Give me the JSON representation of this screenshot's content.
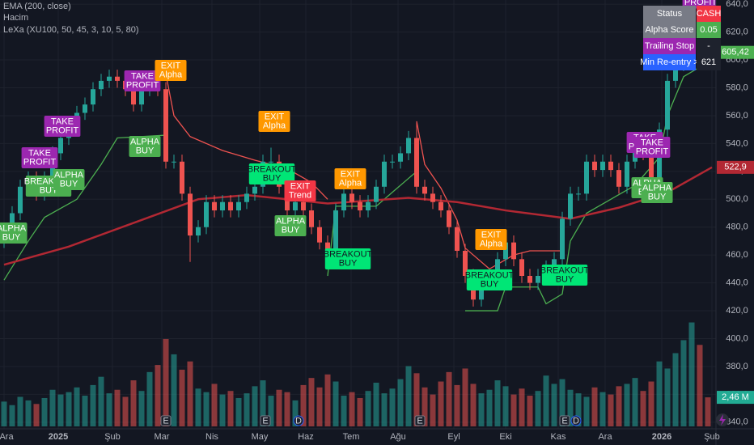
{
  "chart_data": {
    "type": "candlestick",
    "indicators": [
      "EMA (200, close)",
      "Hacim",
      "LeXa (XU100, 50, 45, 3, 10, 5, 80)"
    ],
    "xlim": [
      -0.5,
      87.5
    ],
    "xticks": [
      {
        "value": 0,
        "label": "Ara"
      },
      {
        "value": 6.7,
        "label": "2025"
      },
      {
        "value": 13.4,
        "label": "Şub"
      },
      {
        "value": 19.5,
        "label": "Mar"
      },
      {
        "value": 25.7,
        "label": "Nis"
      },
      {
        "value": 31.6,
        "label": "May"
      },
      {
        "value": 37.3,
        "label": "Haz"
      },
      {
        "value": 42.9,
        "label": "Tem"
      },
      {
        "value": 48.7,
        "label": "Ağu"
      },
      {
        "value": 55.6,
        "label": "Eyl"
      },
      {
        "value": 62,
        "label": "Eki"
      },
      {
        "value": 68.5,
        "label": "Kas"
      },
      {
        "value": 74.3,
        "label": "Ara"
      },
      {
        "value": 81.3,
        "label": "2026"
      },
      {
        "value": 87.5,
        "label": "Şub"
      }
    ],
    "ylim": [
      337,
      643
    ],
    "yticks": [
      {
        "value": 640,
        "label": "640,0"
      },
      {
        "value": 620,
        "label": "620,0"
      },
      {
        "value": 600,
        "label": "600,0"
      },
      {
        "value": 580,
        "label": "580,0"
      },
      {
        "value": 560,
        "label": "560,0"
      },
      {
        "value": 540,
        "label": "540,0"
      },
      {
        "value": 520,
        "label": "520,0"
      },
      {
        "value": 500,
        "label": "500,0"
      },
      {
        "value": 480,
        "label": "480,0"
      },
      {
        "value": 460,
        "label": "460,0"
      },
      {
        "value": 440,
        "label": "440,0"
      },
      {
        "value": 420,
        "label": "420,0"
      },
      {
        "value": 400,
        "label": "400,0"
      },
      {
        "value": 380,
        "label": "380,0"
      },
      {
        "value": 360,
        "label": "360,0"
      },
      {
        "value": 340,
        "label": "340,0"
      }
    ],
    "up_color": "#26a69a",
    "down_color": "#ef5350",
    "candles": [
      [
        470,
        480,
        465,
        475
      ],
      [
        475,
        495,
        470,
        490
      ],
      [
        490,
        514,
        485,
        509
      ],
      [
        509,
        520,
        504,
        515
      ],
      [
        515,
        520,
        499,
        504
      ],
      [
        504,
        520,
        499,
        515
      ],
      [
        515,
        538,
        510,
        533
      ],
      [
        533,
        549,
        528,
        544
      ],
      [
        544,
        555,
        539,
        550
      ],
      [
        550,
        567,
        545,
        562
      ],
      [
        562,
        573,
        557,
        568
      ],
      [
        568,
        584,
        563,
        579
      ],
      [
        579,
        590,
        574,
        585
      ],
      [
        585,
        593,
        580,
        588
      ],
      [
        588,
        593,
        580,
        585
      ],
      [
        585,
        590,
        574,
        579
      ],
      [
        579,
        584,
        563,
        568
      ],
      [
        568,
        584,
        563,
        579
      ],
      [
        579,
        590,
        574,
        585
      ],
      [
        585,
        590,
        574,
        579
      ],
      [
        579,
        584,
        522,
        527
      ],
      [
        527,
        532,
        522,
        527
      ],
      [
        527,
        532,
        499,
        504
      ],
      [
        504,
        509,
        455,
        474
      ],
      [
        474,
        485,
        469,
        480
      ],
      [
        480,
        503,
        475,
        498
      ],
      [
        498,
        503,
        487,
        492
      ],
      [
        492,
        503,
        487,
        498
      ],
      [
        498,
        503,
        487,
        492
      ],
      [
        492,
        503,
        487,
        498
      ],
      [
        498,
        509,
        493,
        504
      ],
      [
        504,
        514,
        499,
        509
      ],
      [
        509,
        532,
        504,
        527
      ],
      [
        527,
        537,
        522,
        527
      ],
      [
        527,
        532,
        504,
        509
      ],
      [
        509,
        514,
        487,
        492
      ],
      [
        492,
        503,
        487,
        498
      ],
      [
        498,
        503,
        487,
        492
      ],
      [
        492,
        497,
        475,
        480
      ],
      [
        480,
        485,
        464,
        469
      ],
      [
        469,
        474,
        458,
        463
      ],
      [
        463,
        497,
        458,
        492
      ],
      [
        492,
        509,
        487,
        504
      ],
      [
        504,
        509,
        493,
        498
      ],
      [
        498,
        503,
        487,
        492
      ],
      [
        492,
        503,
        487,
        498
      ],
      [
        498,
        514,
        493,
        509
      ],
      [
        509,
        532,
        504,
        527
      ],
      [
        527,
        532,
        522,
        527
      ],
      [
        527,
        538,
        522,
        533
      ],
      [
        533,
        549,
        528,
        544
      ],
      [
        544,
        555,
        504,
        509
      ],
      [
        509,
        514,
        499,
        504
      ],
      [
        504,
        509,
        493,
        498
      ],
      [
        498,
        503,
        487,
        492
      ],
      [
        492,
        497,
        475,
        480
      ],
      [
        480,
        485,
        458,
        463
      ],
      [
        463,
        468,
        440,
        445
      ],
      [
        445,
        450,
        423,
        428
      ],
      [
        428,
        445,
        423,
        440
      ],
      [
        440,
        450,
        435,
        445
      ],
      [
        445,
        462,
        440,
        457
      ],
      [
        457,
        474,
        452,
        469
      ],
      [
        469,
        474,
        452,
        457
      ],
      [
        457,
        462,
        440,
        445
      ],
      [
        445,
        450,
        435,
        440
      ],
      [
        440,
        450,
        435,
        445
      ],
      [
        445,
        456,
        440,
        451
      ],
      [
        451,
        462,
        446,
        457
      ],
      [
        457,
        491,
        452,
        486
      ],
      [
        486,
        509,
        481,
        504
      ],
      [
        504,
        509,
        499,
        504
      ],
      [
        504,
        532,
        499,
        527
      ],
      [
        527,
        532,
        516,
        521
      ],
      [
        521,
        532,
        516,
        527
      ],
      [
        527,
        532,
        516,
        521
      ],
      [
        521,
        526,
        504,
        509
      ],
      [
        509,
        532,
        504,
        527
      ],
      [
        527,
        543,
        522,
        538
      ],
      [
        538,
        543,
        528,
        533
      ],
      [
        533,
        538,
        510,
        515
      ],
      [
        515,
        555,
        510,
        550
      ],
      [
        550,
        590,
        545,
        585
      ],
      [
        585,
        602,
        580,
        597
      ],
      [
        597,
        613,
        592,
        608
      ],
      [
        608,
        631,
        603,
        626
      ],
      [
        626,
        631,
        615,
        620
      ],
      [
        620,
        625,
        600,
        605.42
      ]
    ],
    "volume": {
      "ylim": [
        0,
        10
      ],
      "values": [
        2.1,
        1.8,
        2.5,
        2.2,
        1.9,
        2.4,
        3.1,
        2.7,
        2.9,
        3.3,
        2.6,
        3.5,
        4.2,
        2.8,
        3.1,
        2.5,
        3.9,
        3.0,
        4.6,
        5.2,
        7.4,
        6.1,
        4.8,
        5.5,
        3.2,
        2.9,
        3.6,
        2.7,
        3.0,
        2.4,
        2.8,
        3.4,
        3.9,
        2.6,
        3.1,
        2.9,
        2.2,
        3.5,
        4.1,
        3.3,
        4.4,
        3.8,
        2.6,
        2.9,
        2.4,
        3.0,
        3.7,
        2.8,
        3.2,
        4.0,
        5.1,
        4.5,
        3.3,
        2.7,
        3.8,
        4.6,
        3.5,
        4.9,
        3.6,
        2.8,
        3.1,
        3.9,
        3.4,
        2.7,
        3.2,
        2.6,
        3.0,
        4.3,
        3.6,
        4.0,
        3.1,
        2.8,
        2.5,
        3.3,
        2.9,
        2.7,
        3.4,
        3.6,
        4.1,
        3.0,
        3.8,
        5.5,
        4.9,
        6.2,
        7.3,
        8.8,
        6.9,
        2.46
      ]
    },
    "ema": {
      "color": "#b22833",
      "x": [
        0,
        8,
        16,
        24,
        30,
        40,
        50,
        56,
        62,
        70,
        76,
        82,
        87.5
      ],
      "values": [
        453,
        466,
        483,
        500,
        503,
        497,
        501,
        498,
        492,
        486,
        494,
        505,
        522.9
      ]
    },
    "trail": [
      {
        "color": "#4caf50",
        "x": [
          0,
          3,
          5,
          9,
          12,
          14,
          20
        ],
        "values": [
          442,
          470,
          487,
          500,
          525,
          544,
          546
        ]
      },
      {
        "color": "#ef5350",
        "x": [
          20,
          21,
          23,
          27,
          31,
          35,
          38,
          40
        ],
        "values": [
          590,
          560,
          545,
          535,
          528,
          522,
          512,
          500
        ]
      },
      {
        "color": "#4caf50",
        "x": [
          40,
          41,
          46,
          48,
          50,
          51
        ],
        "values": [
          445,
          495,
          495,
          505,
          515,
          520
        ]
      },
      {
        "color": "#ef5350",
        "x": [
          51,
          52,
          54,
          56,
          57,
          60,
          63,
          65,
          69
        ],
        "values": [
          556,
          525,
          508,
          485,
          465,
          450,
          460,
          463,
          463
        ]
      },
      {
        "color": "#4caf50",
        "x": [
          57,
          61,
          62,
          66,
          67,
          69,
          70,
          72,
          75,
          78,
          81,
          82,
          84,
          87.5
        ],
        "values": [
          420,
          420,
          437,
          437,
          425,
          432,
          470,
          490,
          500,
          510,
          530,
          560,
          588,
          600
        ]
      }
    ],
    "price_tags": [
      {
        "value": 605.42,
        "label": "605,42",
        "color": "#4caf50"
      },
      {
        "value": 522.9,
        "label": "522,9",
        "color": "#b22833"
      }
    ],
    "volume_tag": {
      "value": 2.46,
      "label": "2,46 M",
      "color": "#22ab94"
    },
    "signals": [
      {
        "text": [
          "ALPHA",
          "BUY"
        ],
        "color": "#4caf50",
        "text_color": "#ffffff"
      },
      {
        "text": [
          "TAKE",
          "PROFIT"
        ],
        "color": "#9c27b0",
        "text_color": "#ffffff"
      },
      {
        "text": [
          "TAKE",
          "PROFIT"
        ],
        "color": "#9c27b0",
        "text_color": "#ffffff"
      },
      {
        "text": [
          "BREAKOUT",
          "BUY"
        ],
        "color": "#4caf50",
        "text_color": "#ffffff"
      },
      {
        "text": [
          "ALPHA",
          "BUY"
        ],
        "color": "#4caf50",
        "text_color": "#ffffff"
      },
      {
        "text": [
          "TAKE",
          "PROFIT"
        ],
        "color": "#9c27b0",
        "text_color": "#ffffff"
      },
      {
        "text": [
          "EXIT",
          "Alpha"
        ],
        "color": "#ff9800",
        "text_color": "#ffffff"
      },
      {
        "text": [
          "ALPHA",
          "BUY"
        ],
        "color": "#4caf50",
        "text_color": "#ffffff"
      },
      {
        "text": [
          "EXIT",
          "Alpha"
        ],
        "color": "#ff9800",
        "text_color": "#ffffff"
      },
      {
        "text": [
          "BREAKOUT",
          "BUY"
        ],
        "color": "#00e676",
        "text_color": "#131722"
      },
      {
        "text": [
          "EXIT",
          "Trend"
        ],
        "color": "#f23645",
        "text_color": "#ffffff"
      },
      {
        "text": [
          "ALPHA",
          "BUY"
        ],
        "color": "#4caf50",
        "text_color": "#ffffff"
      },
      {
        "text": [
          "EXIT",
          "Alpha"
        ],
        "color": "#ff9800",
        "text_color": "#ffffff"
      },
      {
        "text": [
          "BREAKOUT",
          "BUY"
        ],
        "color": "#00e676",
        "text_color": "#131722"
      },
      {
        "text": [
          "EXIT",
          "Alpha"
        ],
        "color": "#ff9800",
        "text_color": "#ffffff"
      },
      {
        "text": [
          "BREAKOUT",
          "BUY"
        ],
        "color": "#00e676",
        "text_color": "#131722"
      },
      {
        "text": [
          "BREAKOUT",
          "BUY"
        ],
        "color": "#00e676",
        "text_color": "#131722"
      },
      {
        "text": [
          "TAKE",
          "PROFIT"
        ],
        "color": "#9c27b0",
        "text_color": "#ffffff"
      },
      {
        "text": [
          "TAKE",
          "PROFIT"
        ],
        "color": "#9c27b0",
        "text_color": "#ffffff"
      },
      {
        "text": [
          "ALPHA",
          "BUY"
        ],
        "color": "#4caf50",
        "text_color": "#ffffff"
      },
      {
        "text": [
          "ALPHA",
          "BUY"
        ],
        "color": "#4caf50",
        "text_color": "#ffffff"
      },
      {
        "text": [
          "PROFIT"
        ],
        "color": "#9c27b0",
        "text_color": "#ffffff"
      }
    ],
    "events": [
      "E",
      "E",
      "D",
      "E",
      "E",
      "D"
    ],
    "table": [
      {
        "label": "Status",
        "value": "CASH",
        "label_color": "#787b86",
        "value_color": "#f23645"
      },
      {
        "label": "Alpha Score",
        "value": 0.05,
        "label_color": "#787b86",
        "value_color": "#4caf50"
      },
      {
        "label": "Trailing Stop",
        "value": "-",
        "label_color": "#9c27b0",
        "value_color": "#1e222d"
      },
      {
        "label": "Min Re-entry >",
        "value": 621,
        "label_color": "#2962ff",
        "value_color": "#1e222d"
      }
    ]
  }
}
